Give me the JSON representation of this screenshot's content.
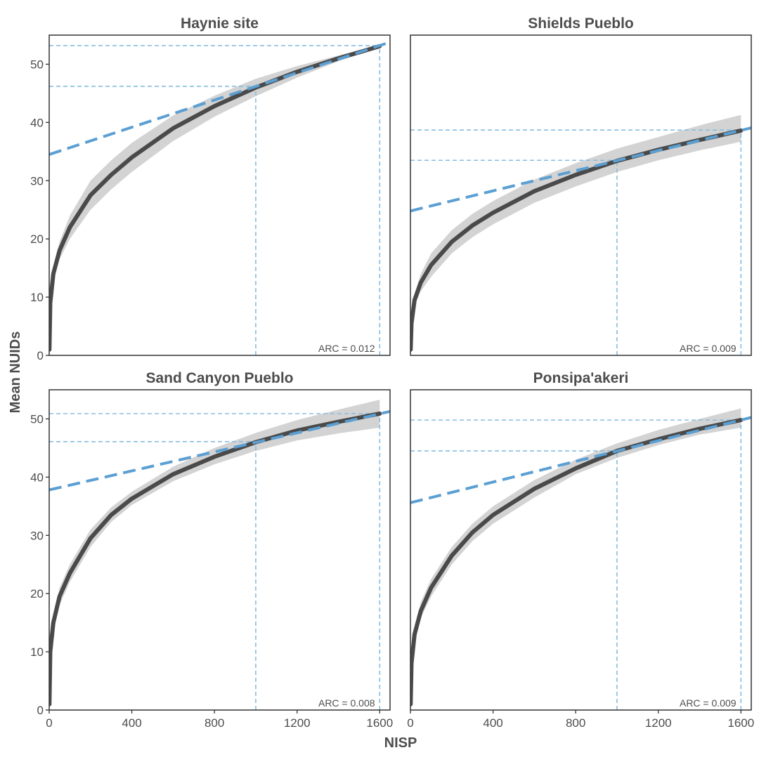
{
  "chart_data": {
    "type": "line",
    "xlabel": "NISP",
    "ylabel": "Mean NUIDs",
    "xlim": [
      0,
      1650
    ],
    "ylim": [
      0,
      55
    ],
    "x_ticks": [
      0,
      400,
      800,
      1200,
      1600
    ],
    "y_ticks": [
      0,
      10,
      20,
      30,
      40,
      50
    ],
    "grid": false,
    "colors": {
      "curve": "#4a4a4a",
      "band": "#d3d3d3",
      "tangent": "#5b9fd3",
      "reference": "#86bde0",
      "frame": "#333333",
      "text": "#4d4d4d"
    },
    "panels": [
      {
        "title": "Haynie site",
        "annotation": "ARC = 0.012",
        "curve_x": [
          1,
          5,
          20,
          50,
          100,
          200,
          300,
          400,
          600,
          800,
          1000,
          1200,
          1400,
          1600
        ],
        "curve_y": [
          1,
          9,
          14,
          18,
          22,
          27.5,
          31,
          34,
          39,
          42.8,
          46,
          48.7,
          51,
          53.1
        ],
        "band_lower": [
          1,
          8.5,
          13,
          16.5,
          20,
          25,
          28.5,
          31.5,
          36.8,
          41,
          44.5,
          47.7,
          50.5,
          53
        ],
        "band_upper": [
          1,
          9.5,
          15,
          19.5,
          24,
          30,
          33.5,
          36.5,
          41.2,
          44.6,
          47.5,
          49.7,
          51.5,
          53.3
        ],
        "tangent": {
          "intercept": 34.5,
          "slope": 0.01169,
          "x_range": [
            0,
            1650
          ]
        },
        "reference_x": [
          1000,
          1600
        ],
        "reference_y": [
          46.2,
          53.2
        ]
      },
      {
        "title": "Shields Pueblo",
        "annotation": "ARC = 0.009",
        "curve_x": [
          1,
          5,
          20,
          50,
          100,
          200,
          300,
          400,
          600,
          800,
          1000,
          1200,
          1400,
          1600
        ],
        "curve_y": [
          1,
          5.5,
          9.5,
          12.5,
          15.5,
          19.5,
          22.3,
          24.5,
          28.2,
          31,
          33.4,
          35.3,
          37,
          38.6
        ],
        "band_lower": [
          1,
          4.8,
          8.5,
          11,
          13.5,
          17.5,
          20.3,
          22.5,
          26.2,
          29,
          31.5,
          33.5,
          35.2,
          36.7
        ],
        "band_upper": [
          1,
          6.2,
          10.5,
          14,
          17.5,
          21.5,
          24.3,
          26.5,
          30.2,
          33,
          35.5,
          37.5,
          39.5,
          41.3
        ],
        "tangent": {
          "intercept": 24.8,
          "slope": 0.00865,
          "x_range": [
            0,
            1650
          ]
        },
        "reference_x": [
          1000,
          1600
        ],
        "reference_y": [
          33.5,
          38.7
        ]
      },
      {
        "title": "Sand Canyon Pueblo",
        "annotation": "ARC = 0.008",
        "curve_x": [
          1,
          5,
          20,
          50,
          100,
          200,
          300,
          400,
          600,
          800,
          1000,
          1200,
          1400,
          1600
        ],
        "curve_y": [
          1,
          10,
          15,
          19.5,
          23.5,
          29.5,
          33.5,
          36.3,
          40.5,
          43.5,
          46,
          48,
          49.5,
          50.9
        ],
        "band_lower": [
          1,
          9.5,
          14,
          18,
          22,
          28,
          32.3,
          35.2,
          39.3,
          42.2,
          44.5,
          46.3,
          47.5,
          48.5
        ],
        "band_upper": [
          1,
          10.5,
          16,
          21,
          25,
          31,
          34.8,
          37.5,
          41.8,
          45,
          47.6,
          49.8,
          51.6,
          53.3
        ],
        "tangent": {
          "intercept": 37.8,
          "slope": 0.00817,
          "x_range": [
            0,
            1650
          ]
        },
        "reference_x": [
          1000,
          1600
        ],
        "reference_y": [
          46.1,
          50.9
        ]
      },
      {
        "title": "Ponsipa'akeri",
        "annotation": "ARC = 0.009",
        "curve_x": [
          1,
          5,
          20,
          50,
          100,
          200,
          300,
          400,
          600,
          800,
          1000,
          1200,
          1400,
          1600
        ],
        "curve_y": [
          1,
          8,
          13,
          17,
          21,
          26.5,
          30.5,
          33.5,
          38,
          41.5,
          44.5,
          46.5,
          48.3,
          49.8
        ],
        "band_lower": [
          1,
          7.5,
          12,
          15.8,
          19.5,
          25,
          29,
          32,
          36.5,
          40.5,
          43.3,
          45.5,
          47.3,
          48.5
        ],
        "band_upper": [
          1,
          8.5,
          14,
          18.5,
          22.5,
          28,
          32,
          35,
          39.5,
          43,
          45.8,
          48.1,
          50,
          51.8
        ],
        "tangent": {
          "intercept": 35.6,
          "slope": 0.00888,
          "x_range": [
            0,
            1650
          ]
        },
        "reference_x": [
          1000,
          1600
        ],
        "reference_y": [
          44.5,
          49.8
        ]
      }
    ]
  }
}
